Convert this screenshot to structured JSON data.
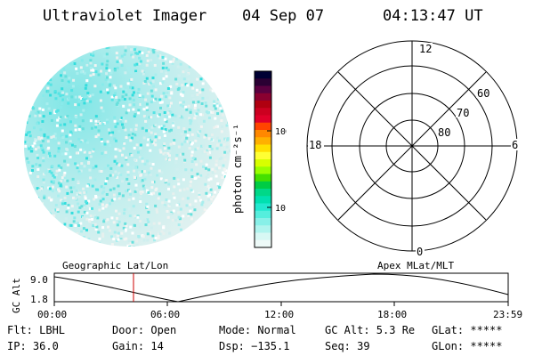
{
  "header": {
    "title": "Ultraviolet Imager",
    "date": "04 Sep 07",
    "time": "04:13:47 UT"
  },
  "colorbar": {
    "unit_label": "photon cm⁻²s⁻¹",
    "ticks": [
      {
        "label": "100",
        "value": 100
      },
      {
        "label": "10",
        "value": 10
      }
    ],
    "colors": [
      "#000033",
      "#2a0033",
      "#5a0040",
      "#8a0030",
      "#b00010",
      "#cc0020",
      "#e0002a",
      "#ff4400",
      "#ff8800",
      "#ffb000",
      "#ffe000",
      "#ffff33",
      "#d8ff00",
      "#99ff00",
      "#44e000",
      "#00cc44",
      "#00d888",
      "#00e0b0",
      "#22e8d0",
      "#55eedd",
      "#88f0e8",
      "#b0f4ee",
      "#d8f8f4",
      "#eefaf8"
    ]
  },
  "polar": {
    "mlt_labels": {
      "top": "12",
      "left": "18",
      "right": "6",
      "bottom": "0"
    },
    "lat_labels": [
      "60",
      "70",
      "80"
    ]
  },
  "geo_label": "Geographic Lat/Lon",
  "apex_label": "Apex MLat/MLT",
  "gc_alt_chart": {
    "ylabel": "GC Alt",
    "yticks": [
      "9.0",
      "1.8"
    ],
    "xticks": [
      "00:00",
      "06:00",
      "12:00",
      "18:00",
      "23:59"
    ],
    "marker_color": "#cc0000"
  },
  "info": {
    "flt": "Flt: LBHL",
    "ip": "IP: 36.0",
    "door": "Door: Open",
    "gain": "Gain: 14",
    "mode": "Mode: Normal",
    "dsp": "Dsp: −135.1",
    "gcalt": "GC Alt: 5.3 Re",
    "seq": "Seq: 39",
    "glat": "GLat: *****",
    "glon": "GLon: *****"
  }
}
